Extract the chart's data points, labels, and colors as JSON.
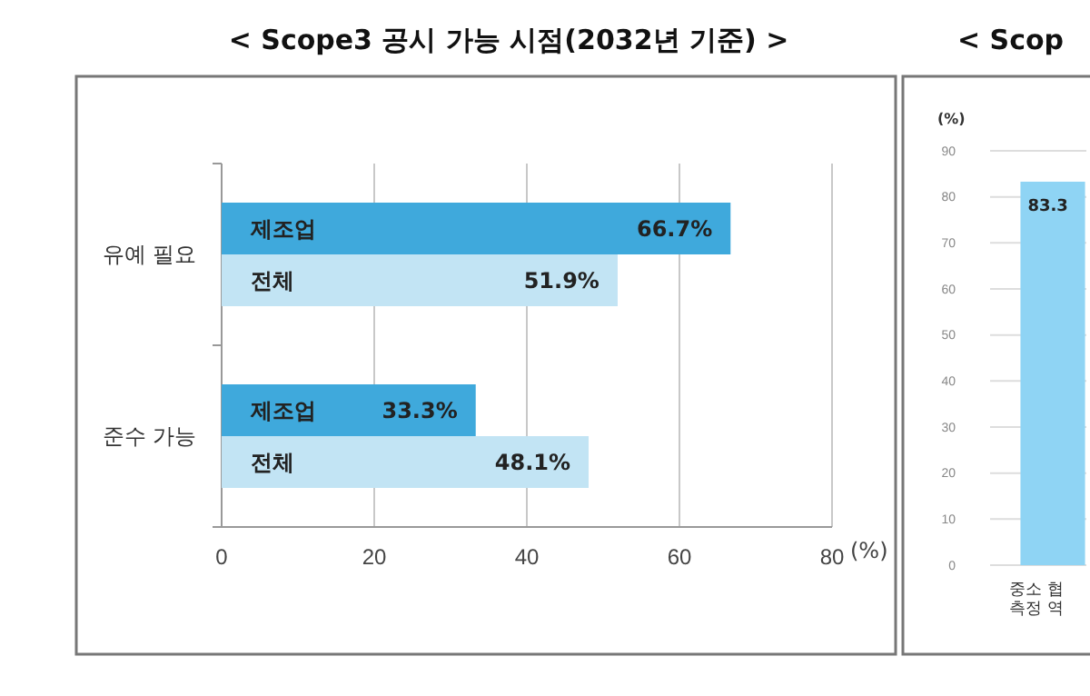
{
  "chart_data": [
    {
      "type": "bar",
      "title": "< Scope3 공시 가능 시점(2032년 기준) >",
      "orientation": "horizontal",
      "categories": [
        "유예 필요",
        "준수 가능"
      ],
      "series": [
        {
          "name": "제조업",
          "color": "#3fa9dc",
          "values": [
            66.7,
            33.3
          ],
          "value_labels": [
            "66.7%",
            "33.3%"
          ]
        },
        {
          "name": "전체",
          "color": "#c2e4f4",
          "values": [
            51.9,
            48.1
          ],
          "value_labels": [
            "51.9%",
            "48.1%"
          ]
        }
      ],
      "xlabel": "(%)",
      "xlim": [
        0,
        80
      ],
      "xticks": [
        0,
        20,
        40,
        60,
        80
      ],
      "grid": "x"
    },
    {
      "type": "bar",
      "title": "< Scop",
      "categories": [
        "중소 협\n측정 역"
      ],
      "values": [
        83.3
      ],
      "color": "#8fd4f4",
      "value_labels": [
        "83.3"
      ],
      "ylabel": "(%)",
      "ylim": [
        0,
        90
      ],
      "yticks": [
        0,
        10,
        20,
        30,
        40,
        50,
        60,
        70,
        80,
        90
      ],
      "grid": "y"
    }
  ]
}
